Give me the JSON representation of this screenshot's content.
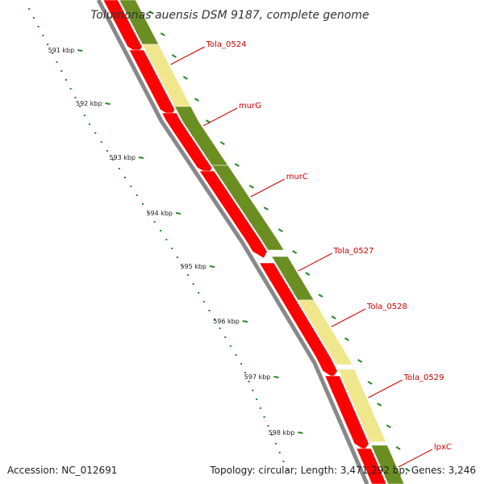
{
  "title": "Tolumonas auensis DSM 9187, complete genome",
  "footer": {
    "accession": "Accession: NC_012691",
    "summary": "Topology: circular; Length: 3,471,292 bp; Genes: 3,246"
  },
  "colors": {
    "red_cds": "#ff0000",
    "olive_cds": "#6b8e23",
    "pale_cds": "#f0e68c",
    "backbone": "#888888",
    "tick": "#228b22",
    "label": "#cc0000"
  },
  "tick_labels": [
    "591 kbp",
    "592 kbp",
    "593 kbp",
    "594 kbp",
    "595 kbp",
    "596 kbp",
    "597 kbp",
    "598 kbp"
  ],
  "gene_labels": [
    "Tola_0524",
    "murG",
    "murC",
    "Tola_0527",
    "Tola_0528",
    "Tola_0529",
    "lpxC"
  ]
}
